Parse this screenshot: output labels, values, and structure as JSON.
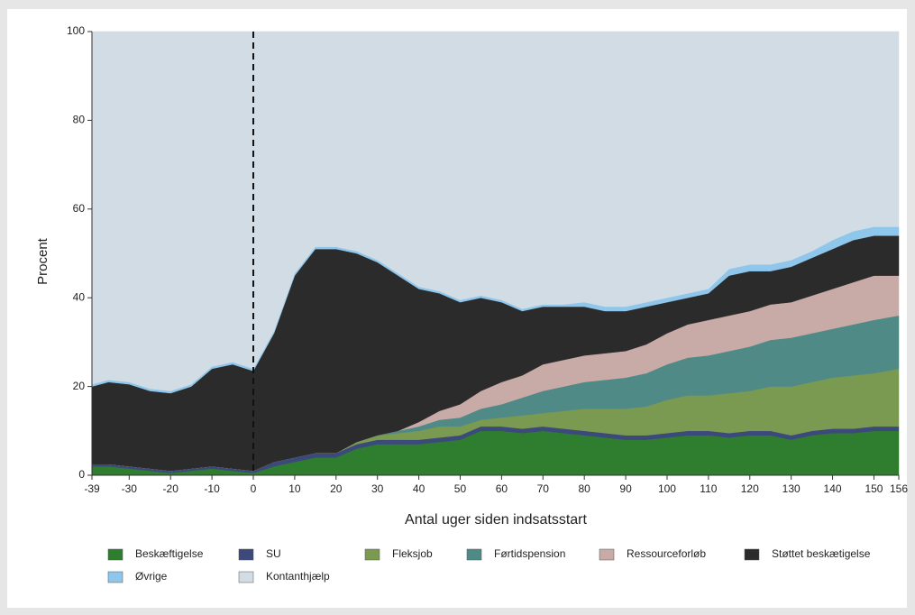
{
  "chart_data": {
    "type": "stacked-area",
    "xlabel": "Antal uger siden indsatsstart",
    "ylabel": "Procent",
    "x": [
      -39,
      -35,
      -30,
      -25,
      -20,
      -15,
      -10,
      -5,
      0,
      5,
      10,
      15,
      20,
      25,
      30,
      35,
      40,
      45,
      50,
      55,
      60,
      65,
      70,
      75,
      80,
      85,
      90,
      95,
      100,
      105,
      110,
      115,
      120,
      125,
      130,
      135,
      140,
      145,
      150,
      156
    ],
    "xlim": [
      -39,
      156
    ],
    "xticks": [
      -39,
      -30,
      -20,
      -10,
      0,
      10,
      20,
      30,
      40,
      50,
      60,
      70,
      80,
      90,
      100,
      110,
      120,
      130,
      140,
      150,
      156
    ],
    "ylim": [
      0,
      100
    ],
    "yticks": [
      0,
      20,
      40,
      60,
      80,
      100
    ],
    "reference_line": {
      "x": 0,
      "style": "dashed"
    },
    "series": [
      {
        "name": "Beskæftigelse",
        "color": "#2f7d2f",
        "values": [
          2,
          2,
          1.5,
          1,
          0.5,
          1,
          1.5,
          1,
          0.5,
          2,
          3,
          4,
          4,
          6,
          7,
          7,
          7,
          7.5,
          8,
          10,
          10,
          9.5,
          10,
          9.5,
          9,
          8.5,
          8,
          8,
          8.5,
          9,
          9,
          8.5,
          9,
          9,
          8,
          9,
          9.5,
          9.5,
          10,
          10
        ]
      },
      {
        "name": "SU",
        "color": "#3b4a7a",
        "values": [
          0.5,
          0.5,
          0.5,
          0.5,
          0.5,
          0.5,
          0.5,
          0.5,
          0.5,
          1,
          1,
          1,
          1,
          1,
          1,
          1,
          1,
          1,
          1,
          1,
          1,
          1,
          1,
          1,
          1,
          1,
          1,
          1,
          1,
          1,
          1,
          1,
          1,
          1,
          1,
          1,
          1,
          1,
          1,
          1
        ]
      },
      {
        "name": "Fleksjob",
        "color": "#7a9a52",
        "values": [
          0,
          0,
          0,
          0,
          0,
          0,
          0,
          0,
          0,
          0,
          0,
          0,
          0,
          0.5,
          1,
          1.5,
          2,
          2.5,
          2,
          1.5,
          2,
          3,
          3,
          4,
          5,
          5.5,
          6,
          6.5,
          7.5,
          8,
          8,
          9,
          9,
          10,
          11,
          11,
          11.5,
          12,
          12,
          13
        ]
      },
      {
        "name": "Førtidspension",
        "color": "#4f8a86",
        "values": [
          0,
          0,
          0,
          0,
          0,
          0,
          0,
          0,
          0,
          0,
          0,
          0,
          0,
          0,
          0,
          0.5,
          1,
          1.5,
          2,
          2.5,
          3,
          4,
          5,
          5.5,
          6,
          6.5,
          7,
          7.5,
          8,
          8.5,
          9,
          9.5,
          10,
          10.5,
          11,
          11,
          11,
          11.5,
          12,
          12
        ]
      },
      {
        "name": "Ressourceforløb",
        "color": "#c8aaa7",
        "values": [
          0,
          0,
          0,
          0,
          0,
          0,
          0,
          0,
          0,
          0,
          0,
          0,
          0,
          0,
          0,
          0,
          1,
          2,
          3,
          4,
          5,
          5,
          6,
          6,
          6,
          6,
          6,
          6.5,
          7,
          7.5,
          8,
          8,
          8,
          8,
          8,
          8.5,
          9,
          9.5,
          10,
          9
        ]
      },
      {
        "name": "Støttet beskætigelse",
        "color": "#2b2b2b",
        "values": [
          17.5,
          18.5,
          18.5,
          17.5,
          17.5,
          18.5,
          22,
          23.5,
          22.5,
          29,
          41,
          46,
          46,
          42.5,
          39,
          35,
          30,
          26.5,
          23,
          21,
          18,
          14.5,
          13,
          12,
          11,
          9.5,
          9,
          8.5,
          7,
          6,
          6,
          9,
          9,
          7.5,
          8,
          8.5,
          9,
          9.5,
          9,
          9
        ]
      },
      {
        "name": "Øvrige",
        "color": "#8ec6ec",
        "values": [
          0.5,
          0.5,
          0.5,
          0.5,
          0.5,
          0.5,
          0.5,
          0.5,
          0.5,
          0.5,
          0.5,
          0.5,
          0.5,
          0.5,
          0.5,
          0.5,
          0.5,
          0.5,
          0.5,
          0.5,
          0.5,
          0.5,
          0.5,
          0.5,
          1,
          1,
          1,
          1,
          1,
          1,
          1,
          1.5,
          1.5,
          1.5,
          1.5,
          1.5,
          2,
          2,
          2,
          2
        ]
      },
      {
        "name": "Kontanthjælp",
        "color": "#d1dce5",
        "values": [
          79.5,
          78.5,
          79,
          80.5,
          81,
          79.5,
          75.5,
          74.5,
          76,
          67.5,
          54.5,
          48.5,
          48.5,
          49.5,
          51.5,
          54.5,
          57.5,
          58.5,
          60.5,
          59.5,
          60.5,
          62.5,
          61.5,
          61.5,
          61,
          62,
          62,
          61,
          60,
          59,
          58,
          53.5,
          52.5,
          52.5,
          51.5,
          49.5,
          47,
          45,
          44,
          44
        ]
      }
    ]
  }
}
